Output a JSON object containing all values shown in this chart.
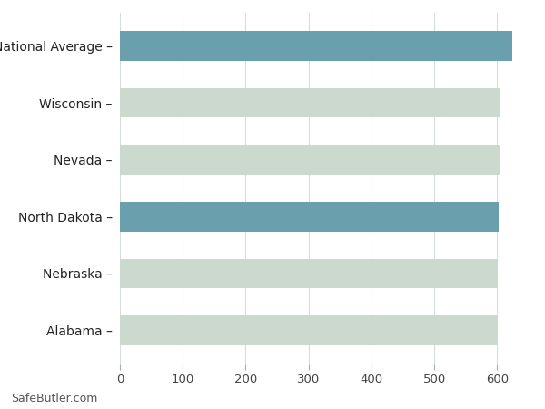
{
  "categories": [
    "Alabama",
    "Nebraska",
    "North Dakota",
    "Nevada",
    "Wisconsin",
    "National Average"
  ],
  "values": [
    601,
    601,
    603,
    604,
    604,
    624
  ],
  "bar_colors": [
    "#ccd9ce",
    "#ccd9ce",
    "#6a9fae",
    "#ccd9ce",
    "#ccd9ce",
    "#6a9fae"
  ],
  "background_color": "#ffffff",
  "grid_color": "#d4ddd6",
  "xlim": [
    0,
    650
  ],
  "xticks": [
    0,
    100,
    200,
    300,
    400,
    500,
    600
  ],
  "footer": "SafeButler.com",
  "bar_height": 0.52
}
